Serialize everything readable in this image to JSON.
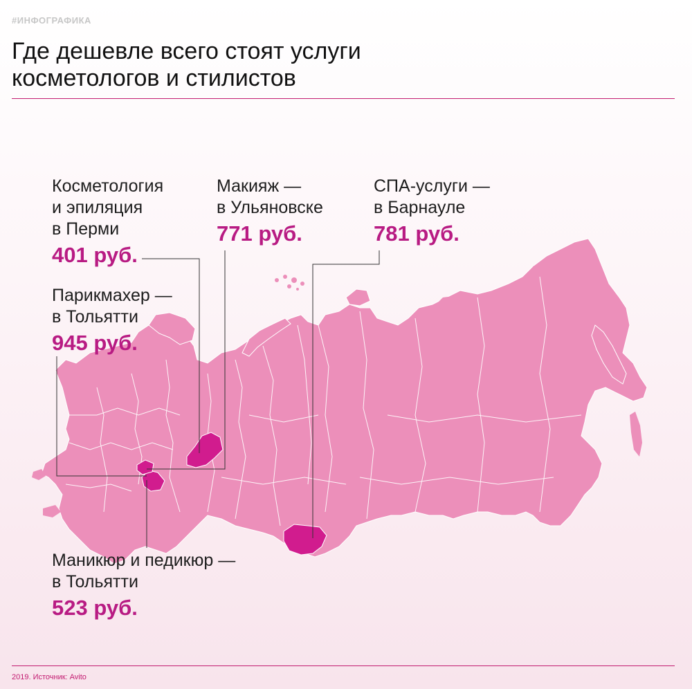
{
  "header": {
    "tag": "#ИНФОГРАФИКА",
    "title_line1": "Где дешевле всего стоят услуги",
    "title_line2": "косметологов и стилистов"
  },
  "callouts": [
    {
      "lines": [
        "Косметология",
        "и эпиляция",
        "в Перми"
      ],
      "price": "401 руб."
    },
    {
      "lines": [
        "Парикмахер —",
        "в Тольятти"
      ],
      "price": "945 руб."
    },
    {
      "lines": [
        "Макияж —",
        "в Ульяновске"
      ],
      "price": "771 руб."
    },
    {
      "lines": [
        "СПА-услуги —",
        "в Барнауле"
      ],
      "price": "781 руб."
    },
    {
      "lines": [
        "Маникюр и педикюр —",
        "в Тольятти"
      ],
      "price": "523 руб."
    }
  ],
  "colors": {
    "accent": "#b81b83",
    "rule": "#c21b70",
    "map_fill": "#ec8fba",
    "highlight_fill": "#d11c8e",
    "region_border": "#ffffff"
  },
  "footer": {
    "source": "2019. Источник: Avito"
  }
}
